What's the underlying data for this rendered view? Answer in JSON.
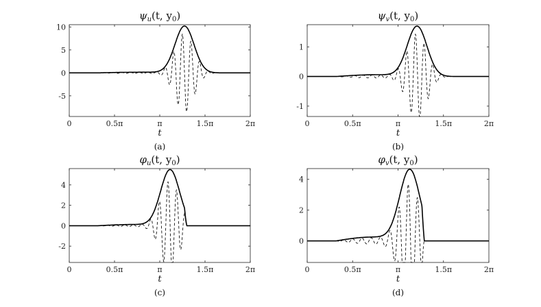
{
  "chart_data": [
    {
      "type": "line",
      "title": "ψ_u(t, y_0)",
      "xlabel": "t",
      "caption": "(a)",
      "xlim": [
        0,
        6.2832
      ],
      "ylim": [
        -9.5,
        10.5
      ],
      "x_ticks": [
        {
          "v": 0,
          "label": "0"
        },
        {
          "v": 1.5708,
          "label": "0.5π"
        },
        {
          "v": 3.1416,
          "label": "π"
        },
        {
          "v": 4.7124,
          "label": "1.5π"
        },
        {
          "v": 6.2832,
          "label": "2π"
        }
      ],
      "y_ticks": [
        {
          "v": -5,
          "label": "-5"
        },
        {
          "v": 0,
          "label": "0"
        },
        {
          "v": 5,
          "label": "5"
        },
        {
          "v": 10,
          "label": "10"
        }
      ],
      "series": [
        {
          "style": "solid",
          "envelope": {
            "peak_x": 4.0,
            "peak_y": 10.2,
            "width": 0.33,
            "rise_start": 1.0,
            "rise_amp": 0.15,
            "cutoff": 6.28
          }
        },
        {
          "style": "dashed",
          "oscillation": {
            "period": 0.3,
            "amp": 0.85,
            "phase": 1.57,
            "cutoff": 5.0
          }
        }
      ]
    },
    {
      "type": "line",
      "title": "ψ_v(t, y_0)",
      "xlabel": "t",
      "caption": "(b)",
      "xlim": [
        0,
        6.2832
      ],
      "ylim": [
        -1.35,
        1.75
      ],
      "x_ticks": [
        {
          "v": 0,
          "label": "0"
        },
        {
          "v": 1.5708,
          "label": "0.5π"
        },
        {
          "v": 3.1416,
          "label": "π"
        },
        {
          "v": 4.7124,
          "label": "1.5π"
        },
        {
          "v": 6.2832,
          "label": "2π"
        }
      ],
      "y_ticks": [
        {
          "v": -1,
          "label": "-1"
        },
        {
          "v": 0,
          "label": "0"
        },
        {
          "v": 1,
          "label": "1"
        }
      ],
      "series": [
        {
          "style": "solid",
          "envelope": {
            "peak_x": 3.8,
            "peak_y": 1.7,
            "width": 0.34,
            "rise_start": 1.0,
            "rise_amp": 0.06,
            "cutoff": 6.28
          }
        },
        {
          "style": "dashed",
          "oscillation": {
            "period": 0.3,
            "amp": 0.85,
            "phase": 1.2,
            "cutoff": 4.9
          }
        }
      ]
    },
    {
      "type": "line",
      "title": "φ_u(t, y_0)",
      "xlabel": "t",
      "caption": "(c)",
      "xlim": [
        0,
        6.2832
      ],
      "ylim": [
        -3.6,
        5.6
      ],
      "x_ticks": [
        {
          "v": 0,
          "label": "0"
        },
        {
          "v": 1.5708,
          "label": "0.5π"
        },
        {
          "v": 3.1416,
          "label": "π"
        },
        {
          "v": 4.7124,
          "label": "1.5π"
        },
        {
          "v": 6.2832,
          "label": "2π"
        }
      ],
      "y_ticks": [
        {
          "v": -2,
          "label": "-2"
        },
        {
          "v": 0,
          "label": "0"
        },
        {
          "v": 2,
          "label": "2"
        },
        {
          "v": 4,
          "label": "4"
        }
      ],
      "series": [
        {
          "style": "solid",
          "envelope": {
            "peak_x": 3.5,
            "peak_y": 5.5,
            "width": 0.33,
            "rise_start": 1.0,
            "rise_amp": 0.12,
            "cutoff": 4.08
          }
        },
        {
          "style": "dashed",
          "oscillation": {
            "period": 0.3,
            "amp": 0.8,
            "phase": 1.57,
            "cutoff": 4.08
          }
        }
      ]
    },
    {
      "type": "line",
      "title": "φ_v(t, y_0)",
      "xlabel": "t",
      "caption": "(d)",
      "xlim": [
        0,
        6.2832
      ],
      "ylim": [
        -1.4,
        4.7
      ],
      "x_ticks": [
        {
          "v": 0,
          "label": "0"
        },
        {
          "v": 1.5708,
          "label": "0.5π"
        },
        {
          "v": 3.1416,
          "label": "π"
        },
        {
          "v": 4.7124,
          "label": "1.5π"
        },
        {
          "v": 6.2832,
          "label": "2π"
        }
      ],
      "y_ticks": [
        {
          "v": 0,
          "label": "0"
        },
        {
          "v": 2,
          "label": "2"
        },
        {
          "v": 4,
          "label": "4"
        }
      ],
      "series": [
        {
          "style": "solid",
          "envelope": {
            "peak_x": 3.55,
            "peak_y": 4.65,
            "width": 0.35,
            "rise_start": 1.0,
            "rise_amp": 0.25,
            "cutoff": 4.05
          }
        },
        {
          "style": "dashed",
          "oscillation": {
            "period": 0.32,
            "amp": 0.8,
            "phase": 1.1,
            "cutoff": 4.05
          }
        }
      ]
    }
  ]
}
